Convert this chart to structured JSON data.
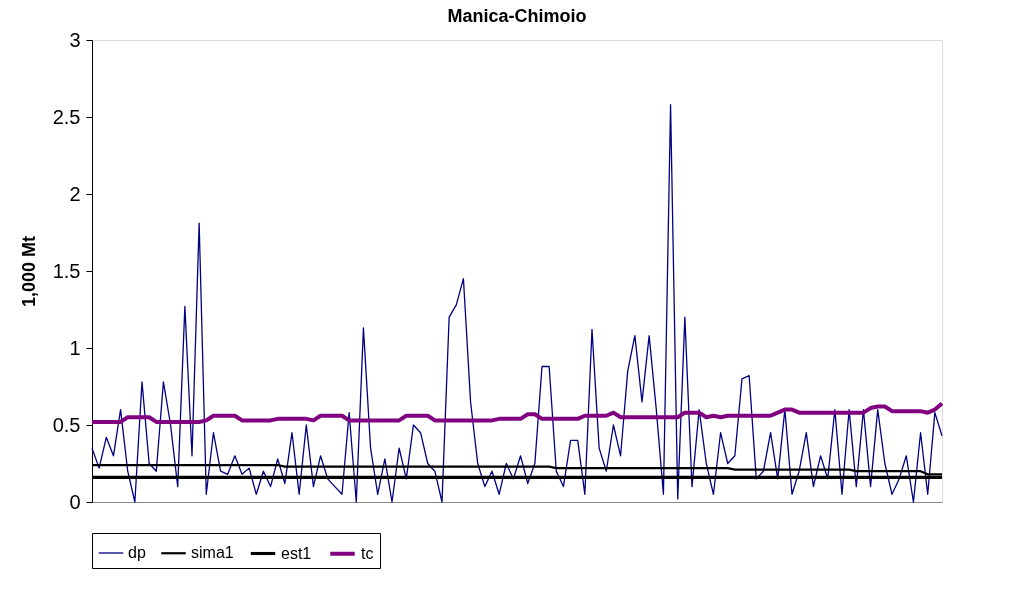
{
  "chart_data": {
    "type": "line",
    "title": "Manica-Chimoio",
    "ylabel": "1,000 Mt",
    "categories": [
      null,
      null,
      null,
      null,
      null,
      null,
      null,
      null,
      null,
      null,
      null,
      null,
      null,
      null,
      null,
      null,
      null,
      null,
      null,
      null,
      null,
      null,
      null,
      null,
      null,
      null,
      null,
      null,
      null,
      null,
      null,
      null,
      null,
      null,
      null,
      null,
      null,
      null,
      null,
      null,
      null,
      null,
      null,
      null,
      null,
      null,
      null,
      null,
      null,
      null,
      null,
      null,
      null,
      null,
      null,
      null,
      null,
      null,
      null,
      null,
      null,
      null,
      null,
      null,
      null,
      null,
      null,
      null,
      null,
      null,
      null,
      null,
      null,
      null,
      null,
      null,
      null,
      null,
      null,
      null,
      null,
      null,
      null,
      null,
      null,
      null,
      null,
      null,
      null,
      null,
      null,
      null,
      null,
      null,
      null,
      null,
      null,
      null,
      null,
      null,
      null,
      null,
      null,
      null,
      null,
      null,
      null,
      null,
      null,
      null,
      null,
      null,
      null,
      null,
      null,
      null,
      null,
      null,
      null,
      null
    ],
    "series": [
      {
        "name": "dp",
        "color": "#000080",
        "values": [
          0.35,
          0.22,
          0.42,
          0.3,
          0.6,
          0.2,
          0,
          0.78,
          0.25,
          0.2,
          0.78,
          0.5,
          0.1,
          1.27,
          0.3,
          1.81,
          0.05,
          0.45,
          0.2,
          0.18,
          0.3,
          0.18,
          0.22,
          0.05,
          0.2,
          0.1,
          0.28,
          0.12,
          0.45,
          0.05,
          0.5,
          0.1,
          0.3,
          0.15,
          0.1,
          0.05,
          0.58,
          0,
          1.13,
          0.35,
          0.05,
          0.28,
          0,
          0.35,
          0.15,
          0.5,
          0.45,
          0.25,
          0.2,
          0,
          1.2,
          1.28,
          1.45,
          0.65,
          0.25,
          0.1,
          0.2,
          0.05,
          0.25,
          0.15,
          0.3,
          0.12,
          0.25,
          0.88,
          0.88,
          0.2,
          0.1,
          0.4,
          0.4,
          0.05,
          1.12,
          0.35,
          0.2,
          0.5,
          0.3,
          0.85,
          1.08,
          0.65,
          1.08,
          0.6,
          0.05,
          2.58,
          0.02,
          1.2,
          0.1,
          0.6,
          0.25,
          0.05,
          0.45,
          0.25,
          0.3,
          0.8,
          0.82,
          0.15,
          0.2,
          0.45,
          0.15,
          0.6,
          0.05,
          0.2,
          0.45,
          0.1,
          0.3,
          0.15,
          0.6,
          0.05,
          0.6,
          0.1,
          0.6,
          0.1,
          0.6,
          0.25,
          0.05,
          0.15,
          0.3,
          0,
          0.45,
          0.05,
          0.58,
          0.43
        ]
      },
      {
        "name": "sima1",
        "color": "#000000",
        "values": [
          0.24,
          0.24,
          0.24,
          0.24,
          0.24,
          0.24,
          0.24,
          0.24,
          0.24,
          0.24,
          0.24,
          0.24,
          0.24,
          0.24,
          0.24,
          0.24,
          0.24,
          0.24,
          0.24,
          0.24,
          0.24,
          0.24,
          0.24,
          0.24,
          0.24,
          0.24,
          0.24,
          0.23,
          0.23,
          0.23,
          0.23,
          0.23,
          0.23,
          0.23,
          0.23,
          0.23,
          0.23,
          0.23,
          0.23,
          0.23,
          0.23,
          0.23,
          0.23,
          0.23,
          0.23,
          0.23,
          0.23,
          0.23,
          0.23,
          0.23,
          0.23,
          0.23,
          0.23,
          0.23,
          0.23,
          0.23,
          0.23,
          0.23,
          0.23,
          0.23,
          0.23,
          0.23,
          0.23,
          0.23,
          0.23,
          0.22,
          0.22,
          0.22,
          0.22,
          0.22,
          0.22,
          0.22,
          0.22,
          0.22,
          0.22,
          0.22,
          0.22,
          0.22,
          0.22,
          0.22,
          0.22,
          0.22,
          0.22,
          0.22,
          0.22,
          0.22,
          0.22,
          0.22,
          0.22,
          0.22,
          0.21,
          0.21,
          0.21,
          0.21,
          0.21,
          0.21,
          0.21,
          0.21,
          0.21,
          0.21,
          0.21,
          0.21,
          0.21,
          0.21,
          0.21,
          0.21,
          0.21,
          0.2,
          0.2,
          0.2,
          0.2,
          0.2,
          0.2,
          0.2,
          0.2,
          0.2,
          0.2,
          0.18,
          0.18,
          0.18
        ]
      },
      {
        "name": "est1",
        "color": "#000000",
        "values": [
          0.16,
          0.16,
          0.16,
          0.16,
          0.16,
          0.16,
          0.16,
          0.16,
          0.16,
          0.16,
          0.16,
          0.16,
          0.16,
          0.16,
          0.16,
          0.16,
          0.16,
          0.16,
          0.16,
          0.16,
          0.16,
          0.16,
          0.16,
          0.16,
          0.16,
          0.16,
          0.16,
          0.16,
          0.16,
          0.16,
          0.16,
          0.16,
          0.16,
          0.16,
          0.16,
          0.16,
          0.16,
          0.16,
          0.16,
          0.16,
          0.16,
          0.16,
          0.16,
          0.16,
          0.16,
          0.16,
          0.16,
          0.16,
          0.16,
          0.16,
          0.16,
          0.16,
          0.16,
          0.16,
          0.16,
          0.16,
          0.16,
          0.16,
          0.16,
          0.16,
          0.16,
          0.16,
          0.16,
          0.16,
          0.16,
          0.16,
          0.16,
          0.16,
          0.16,
          0.16,
          0.16,
          0.16,
          0.16,
          0.16,
          0.16,
          0.16,
          0.16,
          0.16,
          0.16,
          0.16,
          0.16,
          0.16,
          0.16,
          0.16,
          0.16,
          0.16,
          0.16,
          0.16,
          0.16,
          0.16,
          0.16,
          0.16,
          0.16,
          0.16,
          0.16,
          0.16,
          0.16,
          0.16,
          0.16,
          0.16,
          0.16,
          0.16,
          0.16,
          0.16,
          0.16,
          0.16,
          0.16,
          0.16,
          0.16,
          0.16,
          0.16,
          0.16,
          0.16,
          0.16,
          0.16,
          0.16,
          0.16,
          0.16,
          0.16,
          0.16
        ]
      },
      {
        "name": "tc",
        "color": "#800080",
        "values": [
          0.52,
          0.52,
          0.52,
          0.52,
          0.52,
          0.55,
          0.55,
          0.55,
          0.55,
          0.52,
          0.52,
          0.52,
          0.52,
          0.52,
          0.52,
          0.52,
          0.53,
          0.56,
          0.56,
          0.56,
          0.56,
          0.53,
          0.53,
          0.53,
          0.53,
          0.53,
          0.54,
          0.54,
          0.54,
          0.54,
          0.54,
          0.53,
          0.56,
          0.56,
          0.56,
          0.56,
          0.53,
          0.53,
          0.53,
          0.53,
          0.53,
          0.53,
          0.53,
          0.53,
          0.56,
          0.56,
          0.56,
          0.56,
          0.53,
          0.53,
          0.53,
          0.53,
          0.53,
          0.53,
          0.53,
          0.53,
          0.53,
          0.54,
          0.54,
          0.54,
          0.54,
          0.57,
          0.57,
          0.54,
          0.54,
          0.54,
          0.54,
          0.54,
          0.54,
          0.56,
          0.56,
          0.56,
          0.56,
          0.58,
          0.55,
          0.55,
          0.55,
          0.55,
          0.55,
          0.55,
          0.55,
          0.55,
          0.55,
          0.58,
          0.58,
          0.58,
          0.55,
          0.56,
          0.55,
          0.56,
          0.56,
          0.56,
          0.56,
          0.56,
          0.56,
          0.56,
          0.58,
          0.6,
          0.6,
          0.58,
          0.58,
          0.58,
          0.58,
          0.58,
          0.58,
          0.58,
          0.58,
          0.58,
          0.58,
          0.61,
          0.62,
          0.62,
          0.59,
          0.59,
          0.59,
          0.59,
          0.59,
          0.58,
          0.6,
          0.64
        ]
      }
    ],
    "ylim": [
      0,
      3
    ],
    "yticks": [
      0,
      0.5,
      1,
      1.5,
      2,
      2.5,
      3
    ],
    "grid": false,
    "legend": "bottom",
    "marker": "none",
    "line_style": "solid",
    "tick_labels": "y"
  }
}
